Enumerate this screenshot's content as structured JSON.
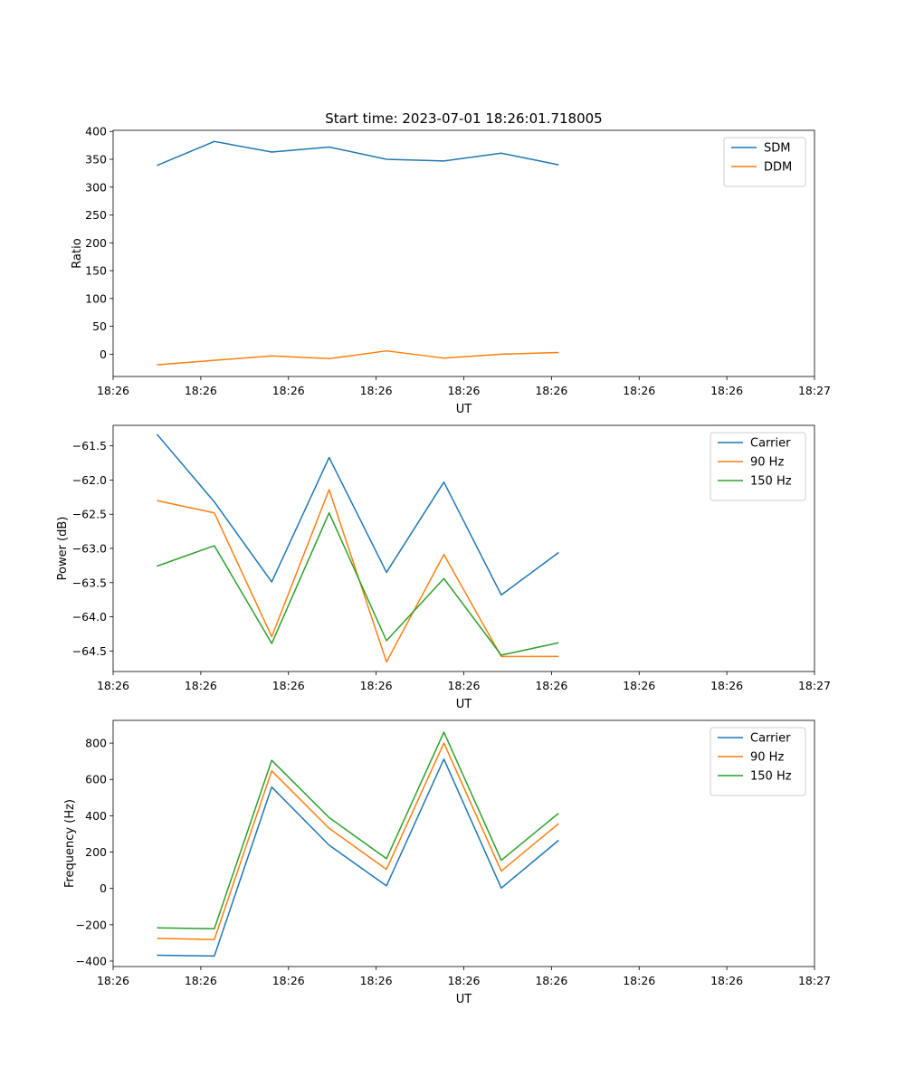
{
  "chart_data": [
    {
      "type": "line",
      "title": "Start time: 2023-07-01 18:26:01.718005",
      "xlabel": "UT",
      "ylabel": "Ratio",
      "xlim": [
        0,
        8.8
      ],
      "x_ticks": [
        0.0,
        1.1,
        2.2,
        3.3,
        4.4,
        5.5,
        6.6,
        7.7,
        8.8
      ],
      "x_tick_labels": [
        "18:26",
        "18:26",
        "18:26",
        "18:26",
        "18:26",
        "18:26",
        "18:26",
        "18:26",
        "18:27"
      ],
      "x": [
        0.55,
        1.27,
        1.99,
        2.71,
        3.43,
        4.15,
        4.87,
        5.59
      ],
      "ylim": [
        -40,
        402
      ],
      "y_ticks": [
        0,
        50,
        100,
        150,
        200,
        250,
        300,
        350,
        400
      ],
      "y_tick_labels": [
        "0",
        "50",
        "100",
        "150",
        "200",
        "250",
        "300",
        "350",
        "400"
      ],
      "legend_position": "upper-right",
      "series": [
        {
          "name": "SDM",
          "color": "#1f77b4",
          "values": [
            339,
            382,
            363,
            372,
            350,
            347,
            361,
            340
          ]
        },
        {
          "name": "DDM",
          "color": "#ff7f0e",
          "values": [
            -19,
            -11,
            -3,
            -8,
            6,
            -7,
            0,
            3
          ]
        }
      ]
    },
    {
      "type": "line",
      "title": "",
      "xlabel": "UT",
      "ylabel": "Power (dB)",
      "xlim": [
        0,
        8.8
      ],
      "x_ticks": [
        0.0,
        1.1,
        2.2,
        3.3,
        4.4,
        5.5,
        6.6,
        7.7,
        8.8
      ],
      "x_tick_labels": [
        "18:26",
        "18:26",
        "18:26",
        "18:26",
        "18:26",
        "18:26",
        "18:26",
        "18:26",
        "18:27"
      ],
      "x": [
        0.55,
        1.27,
        1.99,
        2.71,
        3.43,
        4.15,
        4.87,
        5.59
      ],
      "ylim": [
        -64.8,
        -61.2
      ],
      "y_ticks": [
        -64.5,
        -64.0,
        -63.5,
        -63.0,
        -62.5,
        -62.0,
        -61.5
      ],
      "y_tick_labels": [
        "−64.5",
        "−64.0",
        "−63.5",
        "−63.0",
        "−62.5",
        "−62.0",
        "−61.5"
      ],
      "legend_position": "upper-right",
      "series": [
        {
          "name": "Carrier",
          "color": "#1f77b4",
          "values": [
            -61.33,
            -62.32,
            -63.49,
            -61.67,
            -63.35,
            -62.03,
            -63.68,
            -63.06
          ]
        },
        {
          "name": "90 Hz",
          "color": "#ff7f0e",
          "values": [
            -62.3,
            -62.48,
            -64.29,
            -62.14,
            -64.66,
            -63.09,
            -64.58,
            -64.58
          ]
        },
        {
          "name": "150 Hz",
          "color": "#2ca02c",
          "values": [
            -63.26,
            -62.96,
            -64.39,
            -62.48,
            -64.35,
            -63.44,
            -64.56,
            -64.38
          ]
        }
      ]
    },
    {
      "type": "line",
      "title": "",
      "xlabel": "UT",
      "ylabel": "Frequency (Hz)",
      "xlim": [
        0,
        8.8
      ],
      "x_ticks": [
        0.0,
        1.1,
        2.2,
        3.3,
        4.4,
        5.5,
        6.6,
        7.7,
        8.8
      ],
      "x_tick_labels": [
        "18:26",
        "18:26",
        "18:26",
        "18:26",
        "18:26",
        "18:26",
        "18:26",
        "18:26",
        "18:27"
      ],
      "x": [
        0.55,
        1.27,
        1.99,
        2.71,
        3.43,
        4.15,
        4.87,
        5.59
      ],
      "ylim": [
        -430,
        925
      ],
      "y_ticks": [
        -400,
        -200,
        0,
        200,
        400,
        600,
        800
      ],
      "y_tick_labels": [
        "−400",
        "−200",
        "0",
        "200",
        "400",
        "600",
        "800"
      ],
      "legend_position": "upper-right",
      "series": [
        {
          "name": "Carrier",
          "color": "#1f77b4",
          "values": [
            -368,
            -372,
            558,
            238,
            14,
            712,
            2,
            265
          ]
        },
        {
          "name": "90 Hz",
          "color": "#ff7f0e",
          "values": [
            -275,
            -281,
            647,
            331,
            105,
            800,
            96,
            357
          ]
        },
        {
          "name": "150 Hz",
          "color": "#2ca02c",
          "values": [
            -217,
            -222,
            705,
            390,
            164,
            860,
            155,
            414
          ]
        }
      ]
    }
  ]
}
